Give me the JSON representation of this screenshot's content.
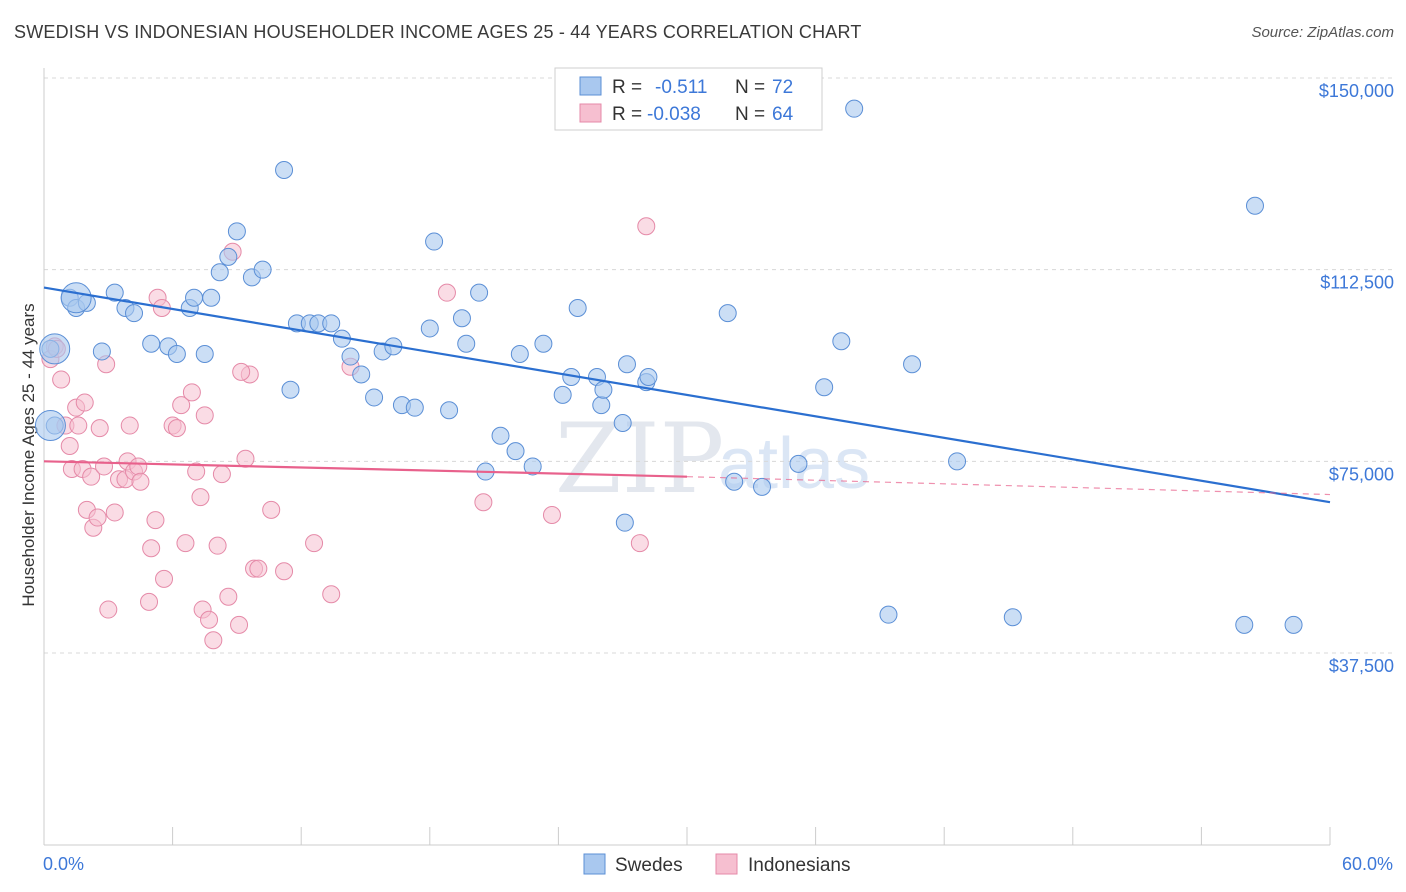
{
  "title": "SWEDISH VS INDONESIAN HOUSEHOLDER INCOME AGES 25 - 44 YEARS CORRELATION CHART",
  "source": "Source: ZipAtlas.com",
  "watermark": {
    "zip": "ZIP",
    "atlas": "atlas"
  },
  "colors": {
    "swedes_fill": "#a9c8ef",
    "swedes_stroke": "#5b8fd6",
    "swedes_line": "#2b6fd0",
    "indonesians_fill": "#f6bfd0",
    "indonesians_stroke": "#e58aa8",
    "indonesians_line": "#e8618c",
    "tick_label": "#3d78d8",
    "grid": "#d8d8d8"
  },
  "legend": {
    "rows": [
      {
        "r_label": "R =",
        "r_value": "-0.511",
        "n_label": "N =",
        "n_value": "72"
      },
      {
        "r_label": "R =",
        "r_value": "-0.038",
        "n_label": "N =",
        "n_value": 64
      }
    ]
  },
  "bottom_legend": [
    "Swedes",
    "Indonesians"
  ],
  "chart_data": {
    "type": "scatter",
    "title": "SWEDISH VS INDONESIAN HOUSEHOLDER INCOME AGES 25 - 44 YEARS CORRELATION CHART",
    "xlabel": "",
    "ylabel": "Householder Income Ages 25 - 44 years",
    "xlim": [
      0,
      60
    ],
    "ylim": [
      0,
      150000
    ],
    "x_tick_labels": [
      "0.0%",
      "60.0%"
    ],
    "y_ticks": [
      37500,
      75000,
      112500,
      150000
    ],
    "y_tick_labels": [
      "$37,500",
      "$75,000",
      "$112,500",
      "$150,000"
    ],
    "grid": true,
    "series": [
      {
        "name": "Swedes",
        "trend": {
          "x": [
            0,
            60
          ],
          "y": [
            109000,
            67000
          ]
        },
        "points": [
          [
            0.3,
            97000
          ],
          [
            0.5,
            82000
          ],
          [
            1.2,
            107000
          ],
          [
            1.5,
            105000
          ],
          [
            2.0,
            106000
          ],
          [
            3.3,
            108000
          ],
          [
            3.8,
            105000
          ],
          [
            4.2,
            104000
          ],
          [
            5.0,
            98000
          ],
          [
            5.8,
            97500
          ],
          [
            6.2,
            96000
          ],
          [
            6.8,
            105000
          ],
          [
            7.0,
            107000
          ],
          [
            7.5,
            96000
          ],
          [
            7.8,
            107000
          ],
          [
            8.2,
            112000
          ],
          [
            8.6,
            115000
          ],
          [
            9.0,
            120000
          ],
          [
            9.7,
            111000
          ],
          [
            10.2,
            112500
          ],
          [
            11.2,
            132000
          ],
          [
            11.5,
            89000
          ],
          [
            11.8,
            102000
          ],
          [
            12.4,
            102000
          ],
          [
            12.8,
            102000
          ],
          [
            13.4,
            102000
          ],
          [
            13.9,
            99000
          ],
          [
            14.3,
            95500
          ],
          [
            14.8,
            92000
          ],
          [
            15.4,
            87500
          ],
          [
            15.8,
            96500
          ],
          [
            16.3,
            97500
          ],
          [
            16.7,
            86000
          ],
          [
            17.3,
            85500
          ],
          [
            18.0,
            101000
          ],
          [
            18.2,
            118000
          ],
          [
            18.9,
            85000
          ],
          [
            19.5,
            103000
          ],
          [
            19.7,
            98000
          ],
          [
            20.3,
            108000
          ],
          [
            20.6,
            73000
          ],
          [
            21.3,
            80000
          ],
          [
            22.0,
            77000
          ],
          [
            22.2,
            96000
          ],
          [
            22.8,
            74000
          ],
          [
            23.3,
            98000
          ],
          [
            24.2,
            88000
          ],
          [
            24.6,
            91500
          ],
          [
            24.9,
            105000
          ],
          [
            25.8,
            91500
          ],
          [
            26.0,
            86000
          ],
          [
            26.1,
            89000
          ],
          [
            27.0,
            82500
          ],
          [
            27.1,
            63000
          ],
          [
            27.2,
            94000
          ],
          [
            28.1,
            90500
          ],
          [
            28.2,
            91500
          ],
          [
            31.9,
            104000
          ],
          [
            32.2,
            71000
          ],
          [
            33.5,
            70000
          ],
          [
            35.2,
            74500
          ],
          [
            36.4,
            89500
          ],
          [
            37.2,
            98500
          ],
          [
            37.8,
            144000
          ],
          [
            39.4,
            45000
          ],
          [
            40.5,
            94000
          ],
          [
            42.6,
            75000
          ],
          [
            45.2,
            44500
          ],
          [
            56.0,
            43000
          ],
          [
            56.5,
            125000
          ],
          [
            58.3,
            43000
          ],
          [
            2.7,
            96500
          ]
        ],
        "big_points": [
          [
            0.3,
            82000
          ],
          [
            0.5,
            97000
          ],
          [
            1.5,
            107000
          ]
        ]
      },
      {
        "name": "Indonesians",
        "trend": {
          "x": [
            0,
            30
          ],
          "y": [
            75000,
            72000
          ]
        },
        "trend_dashed": {
          "x": [
            30,
            60
          ],
          "y": [
            72000,
            68500
          ]
        },
        "points": [
          [
            0.3,
            95000
          ],
          [
            0.5,
            97500
          ],
          [
            0.6,
            97000
          ],
          [
            0.8,
            91000
          ],
          [
            1.0,
            82000
          ],
          [
            1.2,
            78000
          ],
          [
            1.3,
            73500
          ],
          [
            1.5,
            85500
          ],
          [
            1.6,
            82000
          ],
          [
            1.8,
            73500
          ],
          [
            1.9,
            86500
          ],
          [
            2.0,
            65500
          ],
          [
            2.2,
            72000
          ],
          [
            2.3,
            62000
          ],
          [
            2.5,
            64000
          ],
          [
            2.6,
            81500
          ],
          [
            2.8,
            74000
          ],
          [
            2.9,
            94000
          ],
          [
            3.0,
            46000
          ],
          [
            3.3,
            65000
          ],
          [
            3.5,
            71500
          ],
          [
            3.8,
            71500
          ],
          [
            3.9,
            75000
          ],
          [
            4.0,
            82000
          ],
          [
            4.2,
            73000
          ],
          [
            4.4,
            74000
          ],
          [
            4.5,
            71000
          ],
          [
            4.9,
            47500
          ],
          [
            5.0,
            58000
          ],
          [
            5.2,
            63500
          ],
          [
            5.3,
            107000
          ],
          [
            5.5,
            105000
          ],
          [
            5.6,
            52000
          ],
          [
            6.0,
            82000
          ],
          [
            6.2,
            81500
          ],
          [
            6.4,
            86000
          ],
          [
            6.6,
            59000
          ],
          [
            6.9,
            88500
          ],
          [
            7.1,
            73000
          ],
          [
            7.3,
            68000
          ],
          [
            7.4,
            46000
          ],
          [
            7.5,
            84000
          ],
          [
            7.7,
            44000
          ],
          [
            7.9,
            40000
          ],
          [
            8.1,
            58500
          ],
          [
            8.3,
            72500
          ],
          [
            8.6,
            48500
          ],
          [
            8.8,
            116000
          ],
          [
            9.1,
            43000
          ],
          [
            9.4,
            75500
          ],
          [
            9.6,
            92000
          ],
          [
            9.8,
            54000
          ],
          [
            10.0,
            54000
          ],
          [
            10.6,
            65500
          ],
          [
            11.2,
            53500
          ],
          [
            12.6,
            59000
          ],
          [
            13.4,
            49000
          ],
          [
            14.3,
            93500
          ],
          [
            18.8,
            108000
          ],
          [
            20.5,
            67000
          ],
          [
            23.7,
            64500
          ],
          [
            27.8,
            59000
          ],
          [
            28.1,
            121000
          ],
          [
            9.2,
            92500
          ]
        ]
      }
    ]
  }
}
